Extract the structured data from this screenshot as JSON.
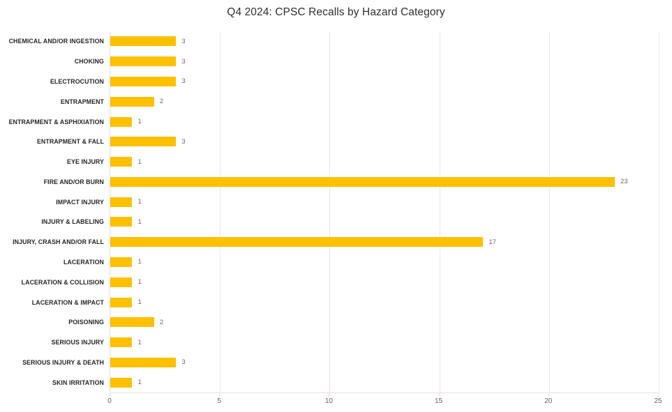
{
  "title": "Q4 2024: CPSC Recalls by Hazard Category",
  "chart_data": {
    "type": "bar",
    "orientation": "horizontal",
    "title": "Q4 2024: CPSC Recalls by Hazard Category",
    "categories": [
      "CHEMICAL AND/OR INGESTION",
      "CHOKING",
      "ELECTROCUTION",
      "ENTRAPMENT",
      "ENTRAPMENT & ASPHIXIATION",
      "ENTRAPMENT & FALL",
      "EYE INJURY",
      "FIRE AND/OR BURN",
      "IMPACT INJURY",
      "INJURY & LABELING",
      "INJURY, CRASH AND/OR FALL",
      "LACERATION",
      "LACERATION & COLLISION",
      "LACERATION & IMPACT",
      "POISONING",
      "SERIOUS INJURY",
      "SERIOUS INJURY & DEATH",
      "SKIN IRRITATION"
    ],
    "values": [
      3,
      3,
      3,
      2,
      1,
      3,
      1,
      23,
      1,
      1,
      17,
      1,
      1,
      1,
      2,
      1,
      3,
      1
    ],
    "xlabel": "",
    "ylabel": "",
    "xlim": [
      0,
      25
    ],
    "x_ticks": [
      0,
      5,
      10,
      15,
      20,
      25
    ],
    "grid": "vertical-major",
    "legend": "none",
    "data_labels": "outside-end",
    "colors": {
      "bar": "#FFC000",
      "title_text": "#2f2f2f",
      "category_text": "#262626",
      "value_text": "#7c5f62",
      "tick_text": "#6b5f62",
      "gridline": "#ece5e9",
      "axis_line": "#e9dfe4",
      "tick_mark": "#e9d4d9",
      "background": "#ffffff"
    }
  }
}
